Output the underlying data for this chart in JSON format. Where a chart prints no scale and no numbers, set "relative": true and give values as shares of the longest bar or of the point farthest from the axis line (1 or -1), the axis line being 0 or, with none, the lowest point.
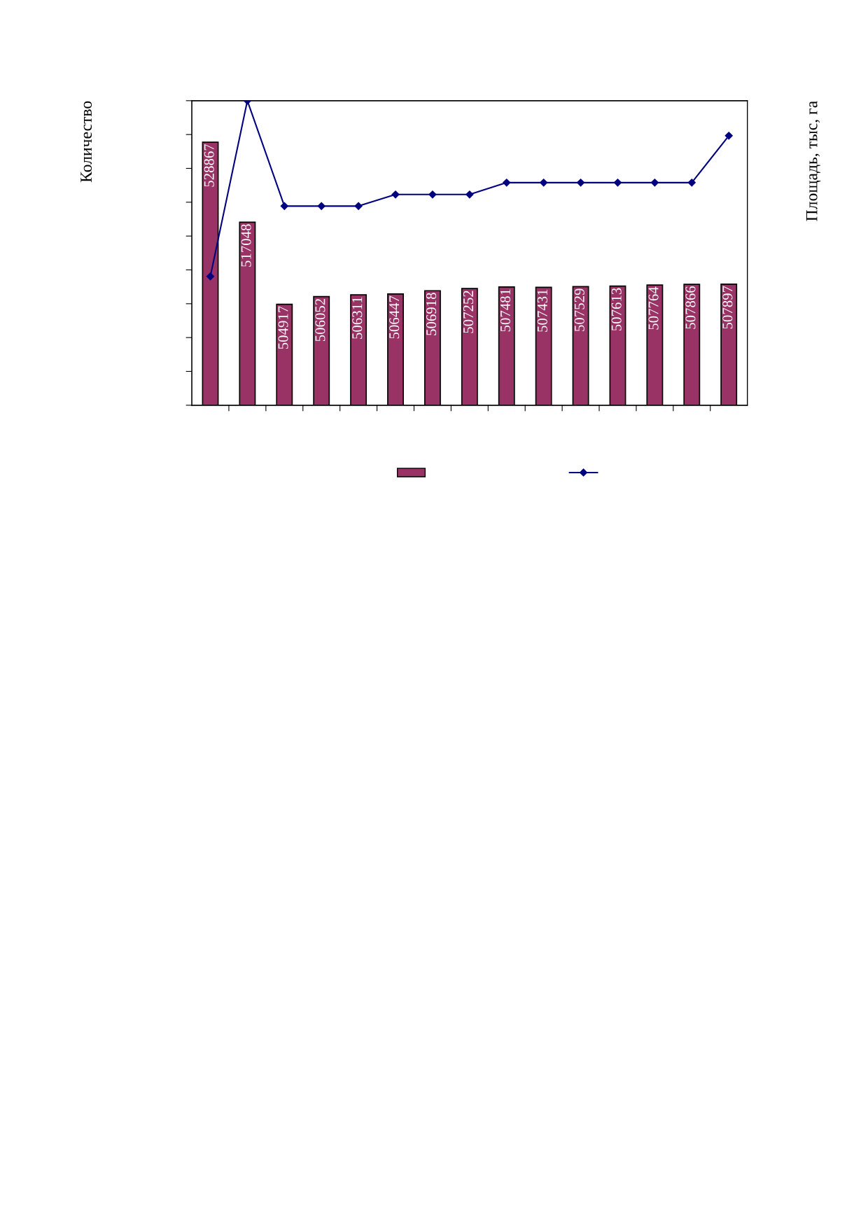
{
  "chart_data": [
    {
      "type": "bar",
      "ylabel": "Количество",
      "categories": [
        null,
        null,
        null,
        null,
        null,
        null,
        null,
        null,
        null,
        null,
        null,
        null,
        null,
        null,
        null
      ],
      "ylim": [
        490000,
        535000
      ],
      "yticks": [
        {
          "value": 490000,
          "label": null
        },
        {
          "value": 495000,
          "label": null
        },
        {
          "value": 500000,
          "label": null
        },
        {
          "value": 505000,
          "label": null
        },
        {
          "value": 510000,
          "label": null
        },
        {
          "value": 515000,
          "label": null
        },
        {
          "value": 520000,
          "label": null
        },
        {
          "value": 525000,
          "label": null
        },
        {
          "value": 530000,
          "label": null
        },
        {
          "value": 535000,
          "label": null
        }
      ],
      "color": "#993366",
      "values": [
        528867,
        517048,
        504917,
        506052,
        506311,
        506447,
        506918,
        507252,
        507481,
        507431,
        507529,
        507613,
        507764,
        507866,
        507897
      ],
      "data_labels": true
    },
    {
      "type": "line",
      "y2label": "Площадь, тыс, га",
      "relative": true,
      "categories": [
        null,
        null,
        null,
        null,
        null,
        null,
        null,
        null,
        null,
        null,
        null,
        null,
        null,
        null,
        null
      ],
      "color": "#000080",
      "marker": "diamond",
      "line_style": "solid",
      "values": [
        0.423,
        1,
        0.654,
        0.654,
        0.654,
        0.692,
        0.692,
        0.692,
        0.731,
        0.731,
        0.731,
        0.731,
        0.731,
        0.731,
        0.885
      ]
    }
  ]
}
